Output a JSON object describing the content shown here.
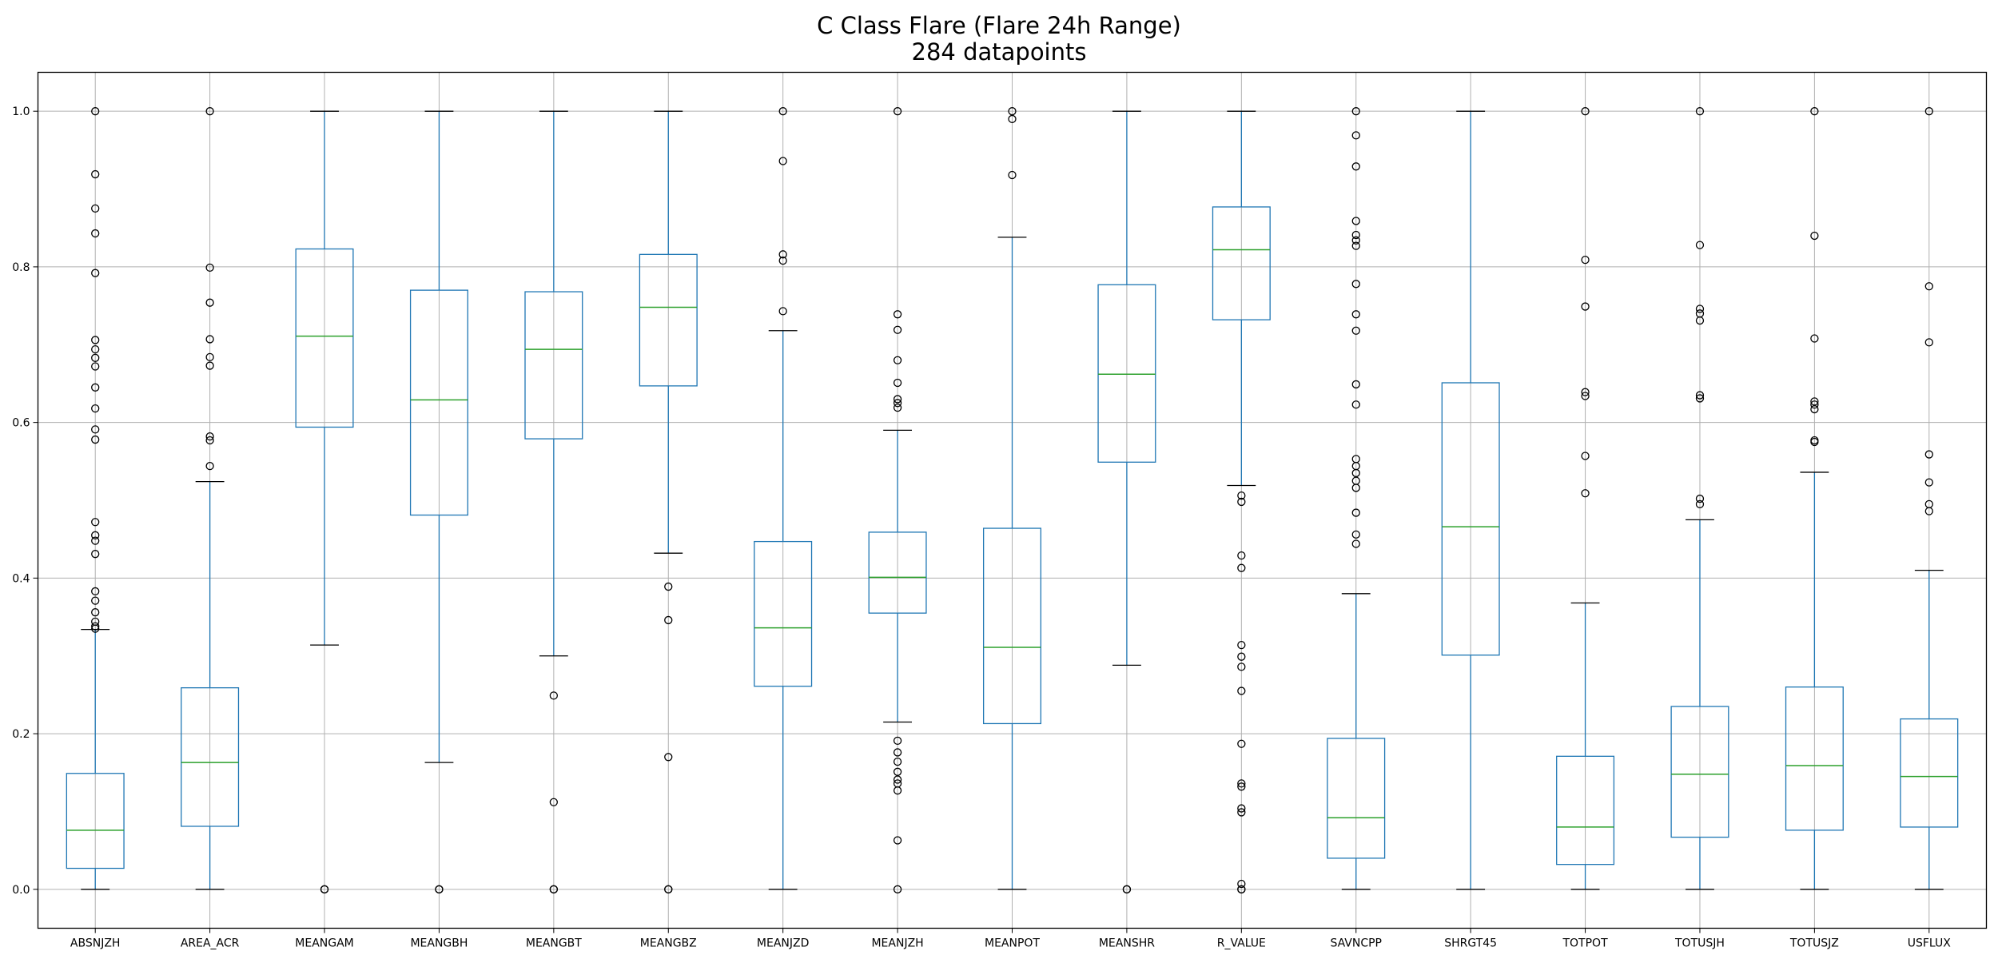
{
  "chart_data": {
    "type": "box",
    "title": "C Class Flare (Flare 24h Range)",
    "subtitle": "284 datapoints",
    "xlabel": "",
    "ylabel": "",
    "ylim": [
      -0.05,
      1.05
    ],
    "yticks": [
      "0.0",
      "0.2",
      "0.4",
      "0.6",
      "0.8",
      "1.0"
    ],
    "grid": true,
    "colors": {
      "box": "#1f77b4",
      "median": "#2ca02c",
      "whisker_cap": "#000000",
      "grid": "#b0b0b0",
      "outlier": "#000000"
    },
    "categories": [
      "ABSNJZH",
      "AREA_ACR",
      "MEANGAM",
      "MEANGBH",
      "MEANGBT",
      "MEANGBZ",
      "MEANJZD",
      "MEANJZH",
      "MEANPOT",
      "MEANSHR",
      "R_VALUE",
      "SAVNCPP",
      "SHRGT45",
      "TOTPOT",
      "TOTUSJH",
      "TOTUSJZ",
      "USFLUX"
    ],
    "boxes": [
      {
        "name": "ABSNJZH",
        "whislo": 0.0,
        "q1": 0.027,
        "med": 0.076,
        "q3": 0.149,
        "whishi": 0.334,
        "fliers": [
          1.0,
          0.919,
          0.875,
          0.843,
          0.792,
          0.706,
          0.694,
          0.683,
          0.672,
          0.645,
          0.618,
          0.591,
          0.578,
          0.472,
          0.455,
          0.448,
          0.431,
          0.383,
          0.371,
          0.356,
          0.344,
          0.338,
          0.335
        ]
      },
      {
        "name": "AREA_ACR",
        "whislo": 0.0,
        "q1": 0.081,
        "med": 0.163,
        "q3": 0.259,
        "whishi": 0.524,
        "fliers": [
          1.0,
          0.799,
          0.754,
          0.707,
          0.684,
          0.673,
          0.582,
          0.577,
          0.544
        ]
      },
      {
        "name": "MEANGAM",
        "whislo": 0.314,
        "q1": 0.594,
        "med": 0.711,
        "q3": 0.823,
        "whishi": 1.0,
        "fliers": [
          0.0,
          0.0
        ]
      },
      {
        "name": "MEANGBH",
        "whislo": 0.163,
        "q1": 0.481,
        "med": 0.629,
        "q3": 0.77,
        "whishi": 1.0,
        "fliers": [
          0.0,
          0.0
        ]
      },
      {
        "name": "MEANGBT",
        "whislo": 0.3,
        "q1": 0.579,
        "med": 0.694,
        "q3": 0.768,
        "whishi": 1.0,
        "fliers": [
          0.249,
          0.112,
          0.0,
          0.0
        ]
      },
      {
        "name": "MEANGBZ",
        "whislo": 0.432,
        "q1": 0.647,
        "med": 0.748,
        "q3": 0.816,
        "whishi": 1.0,
        "fliers": [
          0.389,
          0.346,
          0.17,
          0.0,
          0.0
        ]
      },
      {
        "name": "MEANJZD",
        "whislo": 0.0,
        "q1": 0.261,
        "med": 0.336,
        "q3": 0.447,
        "whishi": 0.718,
        "fliers": [
          1.0,
          0.936,
          0.816,
          0.808,
          0.743
        ]
      },
      {
        "name": "MEANJZH",
        "whislo": 0.215,
        "q1": 0.355,
        "med": 0.401,
        "q3": 0.459,
        "whishi": 0.59,
        "fliers": [
          1.0,
          0.739,
          0.719,
          0.68,
          0.651,
          0.63,
          0.625,
          0.619,
          0.191,
          0.176,
          0.164,
          0.151,
          0.141,
          0.136,
          0.127,
          0.063,
          0.0
        ]
      },
      {
        "name": "MEANPOT",
        "whislo": 0.0,
        "q1": 0.213,
        "med": 0.311,
        "q3": 0.464,
        "whishi": 0.838,
        "fliers": [
          1.0,
          0.99,
          0.918
        ]
      },
      {
        "name": "MEANSHR",
        "whislo": 0.288,
        "q1": 0.549,
        "med": 0.662,
        "q3": 0.777,
        "whishi": 1.0,
        "fliers": [
          0.0,
          0.0
        ]
      },
      {
        "name": "R_VALUE",
        "whislo": 0.519,
        "q1": 0.732,
        "med": 0.822,
        "q3": 0.877,
        "whishi": 1.0,
        "fliers": [
          0.506,
          0.498,
          0.429,
          0.413,
          0.314,
          0.299,
          0.286,
          0.255,
          0.187,
          0.136,
          0.132,
          0.104,
          0.099,
          0.007,
          0.0,
          0.0
        ]
      },
      {
        "name": "SAVNCPP",
        "whislo": 0.0,
        "q1": 0.04,
        "med": 0.092,
        "q3": 0.194,
        "whishi": 0.38,
        "fliers": [
          1.0,
          0.969,
          0.929,
          0.859,
          0.841,
          0.834,
          0.827,
          0.778,
          0.739,
          0.718,
          0.649,
          0.623,
          0.553,
          0.544,
          0.535,
          0.525,
          0.516,
          0.484,
          0.456,
          0.444
        ]
      },
      {
        "name": "SHRGT45",
        "whislo": 0.0,
        "q1": 0.301,
        "med": 0.466,
        "q3": 0.651,
        "whishi": 1.0,
        "fliers": []
      },
      {
        "name": "TOTPOT",
        "whislo": 0.0,
        "q1": 0.032,
        "med": 0.08,
        "q3": 0.171,
        "whishi": 0.368,
        "fliers": [
          1.0,
          0.809,
          0.749,
          0.639,
          0.634,
          0.557,
          0.509
        ]
      },
      {
        "name": "TOTUSJH",
        "whislo": 0.0,
        "q1": 0.067,
        "med": 0.148,
        "q3": 0.235,
        "whishi": 0.475,
        "fliers": [
          1.0,
          0.828,
          0.746,
          0.74,
          0.731,
          0.635,
          0.631,
          0.502,
          0.495
        ]
      },
      {
        "name": "TOTUSJZ",
        "whislo": 0.0,
        "q1": 0.076,
        "med": 0.159,
        "q3": 0.26,
        "whishi": 0.536,
        "fliers": [
          1.0,
          0.84,
          0.708,
          0.627,
          0.623,
          0.617,
          0.577,
          0.575
        ]
      },
      {
        "name": "USFLUX",
        "whislo": 0.0,
        "q1": 0.08,
        "med": 0.145,
        "q3": 0.219,
        "whishi": 0.41,
        "fliers": [
          1.0,
          0.775,
          0.703,
          0.559,
          0.523,
          0.495,
          0.486
        ]
      }
    ]
  }
}
